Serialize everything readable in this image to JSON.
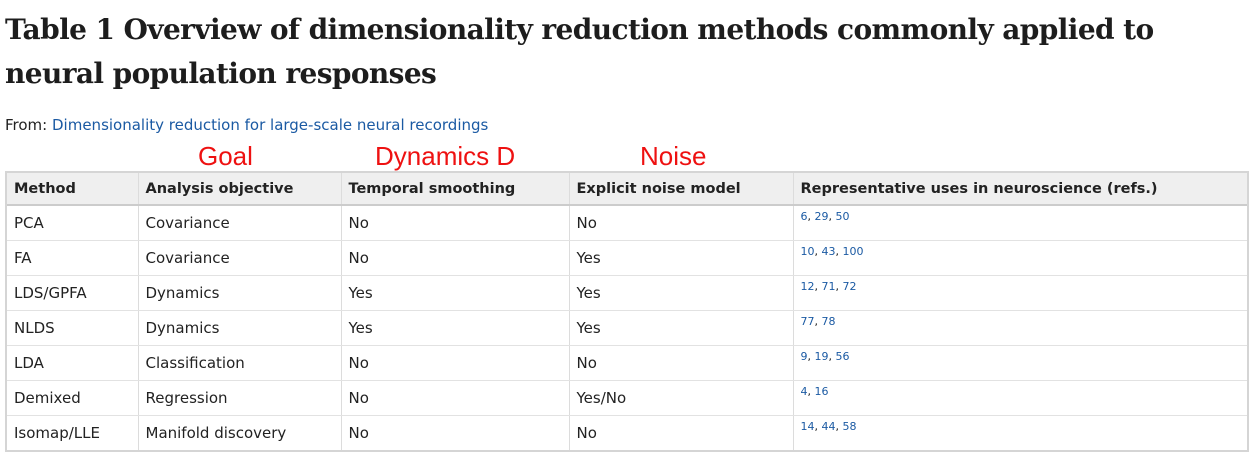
{
  "title": "Table 1 Overview of dimensionality reduction methods commonly applied to neural population responses",
  "from_label": "From:",
  "from_link": "Dimensionality reduction for large-scale neural recordings",
  "annotations": [
    "Goal",
    "Dynamics D",
    "Noise"
  ],
  "annotation_color": "#ee1111",
  "link_color": "#1b5aa3",
  "table": {
    "headers": [
      "Method",
      "Analysis objective",
      "Temporal smoothing",
      "Explicit noise model",
      "Representative uses in neuroscience (refs.)"
    ],
    "rows": [
      {
        "method": "PCA",
        "objective": "Covariance",
        "smoothing": "No",
        "noise": "No",
        "refs": [
          "6",
          "29",
          "50"
        ]
      },
      {
        "method": "FA",
        "objective": "Covariance",
        "smoothing": "No",
        "noise": "Yes",
        "refs": [
          "10",
          "43",
          "100"
        ]
      },
      {
        "method": "LDS/GPFA",
        "objective": "Dynamics",
        "smoothing": "Yes",
        "noise": "Yes",
        "refs": [
          "12",
          "71",
          "72"
        ]
      },
      {
        "method": "NLDS",
        "objective": "Dynamics",
        "smoothing": "Yes",
        "noise": "Yes",
        "refs": [
          "77",
          "78"
        ]
      },
      {
        "method": "LDA",
        "objective": "Classification",
        "smoothing": "No",
        "noise": "No",
        "refs": [
          "9",
          "19",
          "56"
        ]
      },
      {
        "method": "Demixed",
        "objective": "Regression",
        "smoothing": "No",
        "noise": "Yes/No",
        "refs": [
          "4",
          "16"
        ]
      },
      {
        "method": "Isomap/LLE",
        "objective": "Manifold discovery",
        "smoothing": "No",
        "noise": "No",
        "refs": [
          "14",
          "44",
          "58"
        ]
      }
    ]
  }
}
